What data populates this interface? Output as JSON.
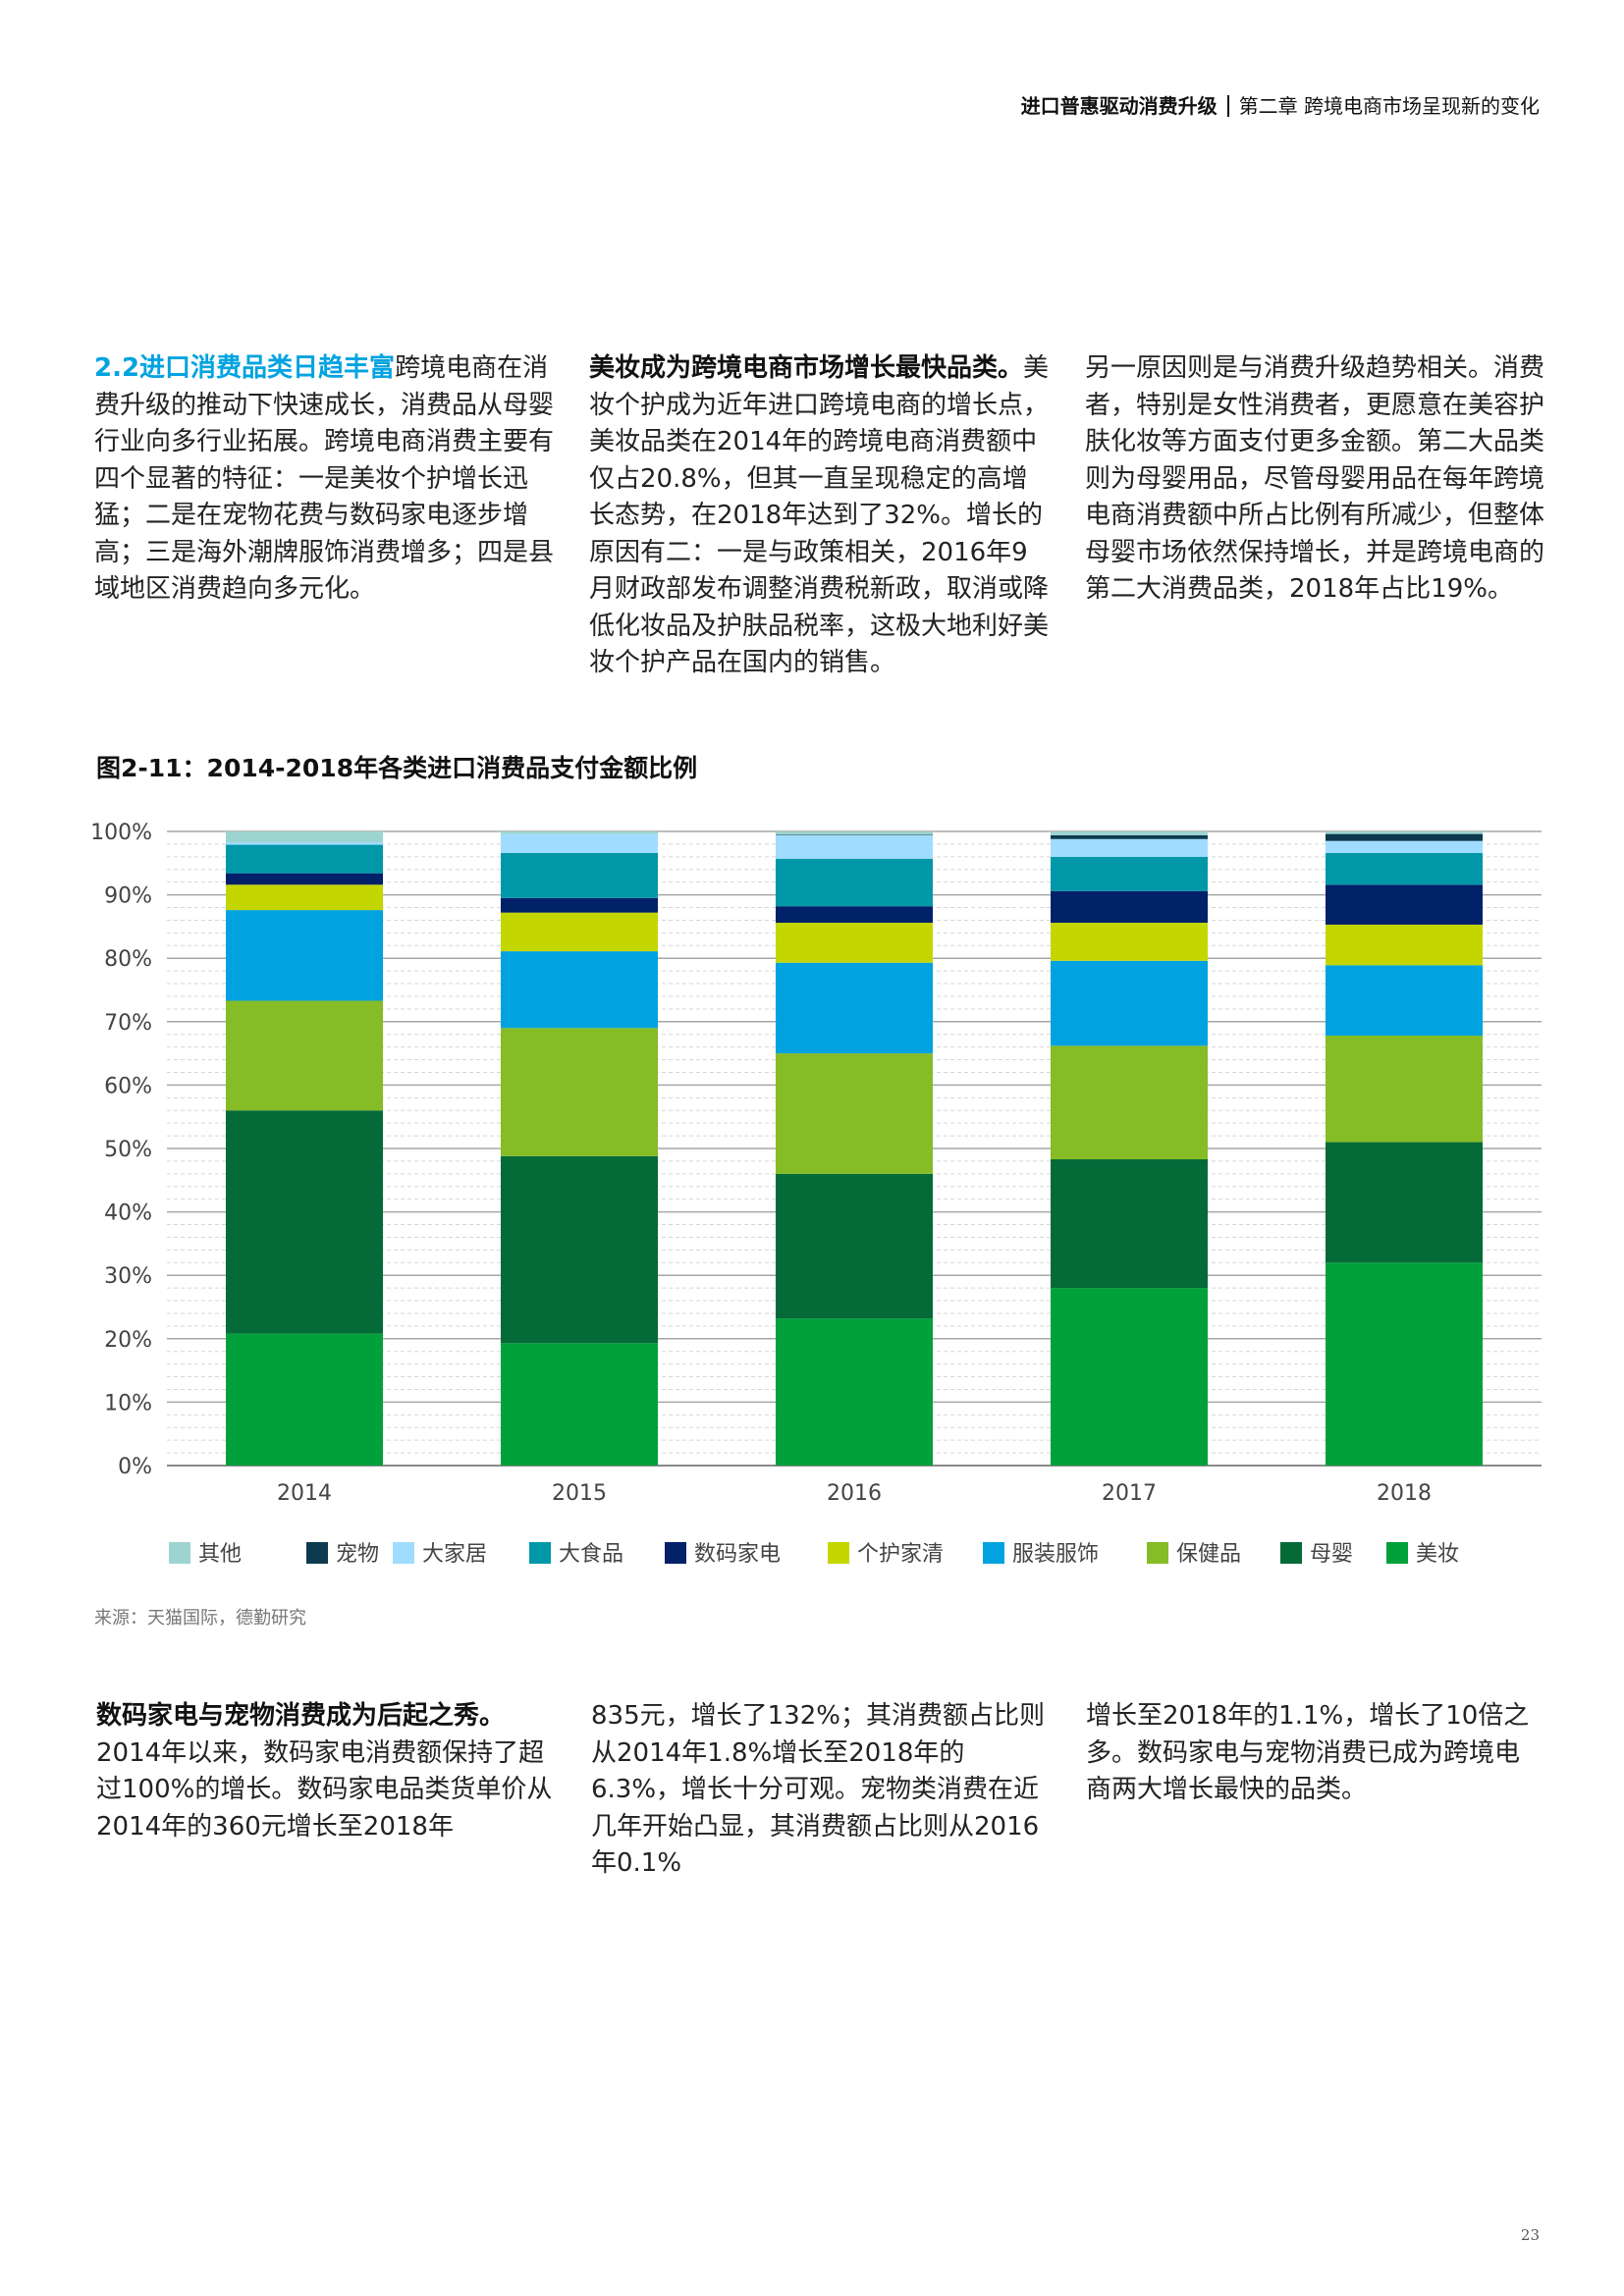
{
  "header": {
    "title": "进口普惠驱动消费升级",
    "chapter": "第二章 跨境电商市场呈现新的变化"
  },
  "top_columns": {
    "col1": {
      "title": "2.2进口消费品类日趋丰富",
      "text": "跨境电商在消费升级的推动下快速成长，消费品从母婴行业向多行业拓展。跨境电商消费主要有四个显著的特征：一是美妆个护增长迅猛；二是在宠物花费与数码家电逐步增高；三是海外潮牌服饰消费增多；四是县域地区消费趋向多元化。"
    },
    "col2": {
      "lead": "美妆成为跨境电商市场增长最快品类。",
      "text": "美妆个护成为近年进口跨境电商的增长点，美妆品类在2014年的跨境电商消费额中仅占20.8%，但其一直呈现稳定的高增长态势，在2018年达到了32%。增长的原因有二：一是与政策相关，2016年9月财政部发布调整消费税新政，取消或降低化妆品及护肤品税率，这极大地利好美妆个护产品在国内的销售。"
    },
    "col3": {
      "text": "另一原因则是与消费升级趋势相关。消费者，特别是女性消费者，更愿意在美容护肤化妆等方面支付更多金额。第二大品类则为母婴用品，尽管母婴用品在每年跨境电商消费额中所占比例有所减少，但整体母婴市场依然保持增长，并是跨境电商的第二大消费品类，2018年占比19%。"
    }
  },
  "figure": {
    "title": "图2-11：2014-2018年各类进口消费品支付金额比例"
  },
  "chart_data": {
    "type": "bar",
    "stacked": true,
    "title": "图2-11：2014-2018年各类进口消费品支付金额比例",
    "categories": [
      "2014",
      "2015",
      "2016",
      "2017",
      "2018"
    ],
    "ylim": [
      0,
      100
    ],
    "yticks": [
      "0%",
      "10%",
      "20%",
      "30%",
      "40%",
      "50%",
      "60%",
      "70%",
      "80%",
      "90%",
      "100%"
    ],
    "legend_position": "bottom",
    "series": [
      {
        "name": "美妆",
        "color": "#00a13a",
        "values": [
          20.8,
          19.3,
          23.2,
          28.0,
          32.0
        ]
      },
      {
        "name": "母婴",
        "color": "#046a38",
        "values": [
          35.2,
          29.5,
          22.8,
          20.3,
          19.0
        ]
      },
      {
        "name": "保健品",
        "color": "#86bc25",
        "values": [
          17.3,
          20.2,
          19.0,
          17.9,
          16.8
        ]
      },
      {
        "name": "服装服饰",
        "color": "#00a3e0",
        "values": [
          14.3,
          12.1,
          14.3,
          13.4,
          11.1
        ]
      },
      {
        "name": "个护家清",
        "color": "#c4d600",
        "values": [
          4.0,
          6.1,
          6.3,
          6.0,
          6.4
        ]
      },
      {
        "name": "数码家电",
        "color": "#012169",
        "values": [
          1.8,
          2.3,
          2.6,
          5.0,
          6.3
        ]
      },
      {
        "name": "大食品",
        "color": "#0097a9",
        "values": [
          4.5,
          7.1,
          7.5,
          5.4,
          5.0
        ]
      },
      {
        "name": "大家居",
        "color": "#a0dcff",
        "values": [
          0.4,
          3.0,
          3.7,
          2.8,
          1.9
        ]
      },
      {
        "name": "宠物",
        "color": "#0d3a4f",
        "values": [
          0.0,
          0.0,
          0.1,
          0.6,
          1.1
        ]
      },
      {
        "name": "其他",
        "color": "#9dd4cf",
        "values": [
          1.7,
          0.4,
          0.5,
          0.6,
          0.4
        ]
      }
    ],
    "legend_order": [
      "其他",
      "宠物",
      "大家居",
      "大食品",
      "数码家电",
      "个护家清",
      "服装服饰",
      "保健品",
      "母婴",
      "美妆"
    ]
  },
  "source": "来源：天猫国际，德勤研究",
  "bottom_columns": {
    "col1": {
      "lead": "数码家电与宠物消费成为后起之秀。",
      "text": "2014年以来，数码家电消费额保持了超过100%的增长。数码家电品类货单价从2014年的360元增长至2018年"
    },
    "col2": {
      "text": "835元，增长了132%；其消费额占比则从2014年1.8%增长至2018年的6.3%，增长十分可观。宠物类消费在近几年开始凸显，其消费额占比则从2016年0.1%"
    },
    "col3": {
      "text": "增长至2018年的1.1%，增长了10倍之多。数码家电与宠物消费已成为跨境电商两大增长最快的品类。"
    }
  },
  "page_number": "23"
}
